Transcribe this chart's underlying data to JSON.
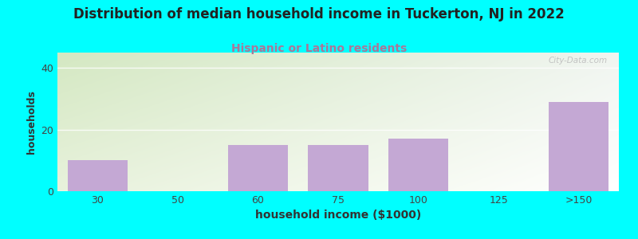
{
  "title": "Distribution of median household income in Tuckerton, NJ in 2022",
  "subtitle": "Hispanic or Latino residents",
  "xlabel": "household income ($1000)",
  "ylabel": "households",
  "categories": [
    "30",
    "50",
    "60",
    "75",
    "100",
    "125",
    ">150"
  ],
  "values": [
    10,
    0,
    15,
    15,
    17,
    0,
    29
  ],
  "bar_color": "#C4A8D4",
  "background_color": "#00FFFF",
  "plot_bg_color_topleft": "#D4E8C2",
  "plot_bg_color_topright": "#F0F5F0",
  "plot_bg_color_bottomleft": "#E8F2DC",
  "plot_bg_color_bottomright": "#FFFFFF",
  "title_fontsize": 12,
  "title_color": "#222222",
  "subtitle_color": "#AA7799",
  "subtitle_fontsize": 10,
  "ylabel_fontsize": 9,
  "xlabel_fontsize": 10,
  "ylim": [
    0,
    45
  ],
  "yticks": [
    0,
    20,
    40
  ],
  "watermark": "City-Data.com"
}
